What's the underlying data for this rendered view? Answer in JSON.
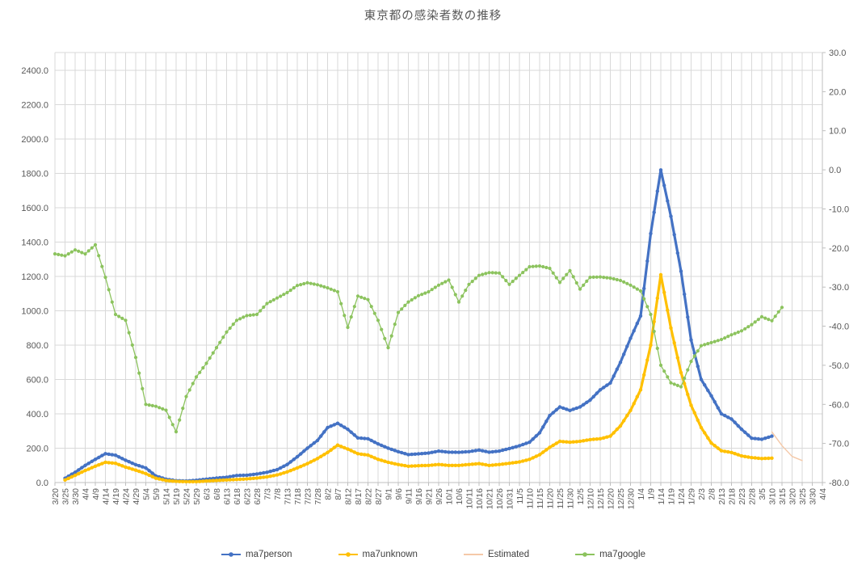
{
  "chart_data": {
    "type": "line",
    "title": "東京都の感染者数の推移",
    "grid": true,
    "legend_position": "bottom",
    "categories": [
      "3/20",
      "3/25",
      "3/30",
      "4/4",
      "4/9",
      "4/14",
      "4/19",
      "4/24",
      "4/29",
      "5/4",
      "5/9",
      "5/14",
      "5/19",
      "5/24",
      "5/29",
      "6/3",
      "6/8",
      "6/13",
      "6/18",
      "6/23",
      "6/28",
      "7/3",
      "7/8",
      "7/13",
      "7/18",
      "7/23",
      "7/28",
      "8/2",
      "8/7",
      "8/12",
      "8/17",
      "8/22",
      "8/27",
      "9/1",
      "9/6",
      "9/11",
      "9/16",
      "9/21",
      "9/26",
      "10/1",
      "10/6",
      "10/11",
      "10/16",
      "10/21",
      "10/26",
      "10/31",
      "11/5",
      "11/10",
      "11/15",
      "11/20",
      "11/25",
      "11/30",
      "12/5",
      "12/10",
      "12/15",
      "12/20",
      "12/25",
      "12/30",
      "1/4",
      "1/9",
      "1/14",
      "1/19",
      "1/24",
      "1/29",
      "2/3",
      "2/8",
      "2/13",
      "2/18",
      "2/23",
      "2/28",
      "3/5",
      "3/10",
      "3/15",
      "3/20",
      "3/25",
      "3/30",
      "4/4"
    ],
    "left_axis": {
      "min": 0,
      "max": 2500,
      "major": 200,
      "tick_labels": [
        "0.0",
        "200.0",
        "400.0",
        "600.0",
        "800.0",
        "1000.0",
        "1200.0",
        "1400.0",
        "1600.0",
        "1800.0",
        "2000.0",
        "2200.0",
        "2400.0"
      ]
    },
    "right_axis": {
      "min": -80,
      "max": 30,
      "major": 10,
      "tick_labels": [
        "30.0",
        "20.0",
        "10.0",
        "0.0",
        "-10.0",
        "-20.0",
        "-30.0",
        "-40.0",
        "-50.0",
        "-60.0",
        "-70.0",
        "-80.0"
      ]
    },
    "colors": {
      "gridline": "#D9D9D9",
      "axis_line": "#BFBFBF",
      "tick_text": "#595959",
      "title_text": "#595959",
      "legend_text": "#404040"
    },
    "series": [
      {
        "name": "ma7person",
        "color": "#4472C4",
        "axis": "left",
        "marker": true,
        "values": [
          null,
          25,
          60,
          100,
          135,
          168,
          159,
          130,
          104,
          85,
          38,
          20,
          11,
          9,
          13,
          20,
          26,
          31,
          41,
          43,
          50,
          60,
          75,
          105,
          150,
          200,
          245,
          320,
          345,
          310,
          260,
          255,
          225,
          200,
          180,
          163,
          167,
          172,
          183,
          177,
          176,
          180,
          189,
          177,
          183,
          198,
          214,
          235,
          290,
          390,
          440,
          420,
          440,
          480,
          540,
          580,
          700,
          840,
          970,
          1450,
          1820,
          1550,
          1230,
          830,
          600,
          505,
          400,
          370,
          310,
          258,
          252,
          270,
          null,
          null,
          null,
          null,
          null
        ]
      },
      {
        "name": "ma7unknown",
        "color": "#FFC000",
        "axis": "left",
        "marker": true,
        "values": [
          null,
          15,
          42,
          70,
          95,
          118,
          112,
          90,
          72,
          52,
          25,
          12,
          7,
          5,
          5,
          9,
          12,
          15,
          18,
          21,
          26,
          33,
          44,
          62,
          85,
          110,
          140,
          175,
          218,
          195,
          168,
          160,
          135,
          118,
          105,
          95,
          98,
          100,
          105,
          100,
          100,
          105,
          110,
          100,
          105,
          112,
          120,
          135,
          162,
          205,
          240,
          235,
          240,
          250,
          255,
          270,
          330,
          420,
          540,
          800,
          1210,
          900,
          640,
          450,
          320,
          230,
          185,
          175,
          155,
          145,
          140,
          142,
          null,
          null,
          null,
          null,
          null
        ]
      },
      {
        "name": "Estimated",
        "color": "#F5C9A8",
        "axis": "left",
        "marker": false,
        "values": [
          null,
          null,
          null,
          null,
          null,
          null,
          null,
          null,
          null,
          null,
          null,
          null,
          null,
          null,
          null,
          null,
          null,
          null,
          null,
          null,
          null,
          null,
          null,
          null,
          null,
          null,
          null,
          null,
          null,
          null,
          null,
          null,
          null,
          null,
          null,
          null,
          null,
          null,
          null,
          null,
          null,
          null,
          null,
          null,
          null,
          null,
          null,
          null,
          null,
          null,
          null,
          null,
          null,
          null,
          null,
          null,
          null,
          null,
          null,
          null,
          null,
          null,
          null,
          null,
          null,
          null,
          null,
          null,
          null,
          null,
          null,
          295,
          215,
          152,
          128,
          null,
          null
        ]
      },
      {
        "name": "ma7google",
        "color": "#8CC35E",
        "axis": "right",
        "marker": true,
        "values": [
          -21.5,
          -22,
          -20.5,
          -21.5,
          -19.2,
          -27.5,
          -37,
          -38.5,
          -48,
          -60,
          -60.5,
          -61.5,
          -67,
          -58,
          -53,
          -49.5,
          -45.5,
          -41.5,
          -38.5,
          -37.3,
          -37,
          -34.2,
          -32.8,
          -31.4,
          -29.6,
          -28.9,
          -29.4,
          -30.2,
          -31.2,
          -40.3,
          -32.3,
          -33.2,
          -38.5,
          -45.5,
          -36.5,
          -33.8,
          -32.2,
          -31.2,
          -29.5,
          -28.2,
          -33.8,
          -29.3,
          -27,
          -26.3,
          -26.4,
          -29.3,
          -27,
          -24.8,
          -24.6,
          -25.2,
          -28.8,
          -25.8,
          -30.5,
          -27.5,
          -27.4,
          -27.7,
          -28.3,
          -29.5,
          -31,
          -37,
          -50,
          -54.5,
          -55.5,
          -49,
          -45,
          -44.2,
          -43.4,
          -42.2,
          -41.2,
          -39.6,
          -37.6,
          -38.6,
          -35.2,
          null,
          null,
          null,
          null
        ]
      }
    ]
  }
}
